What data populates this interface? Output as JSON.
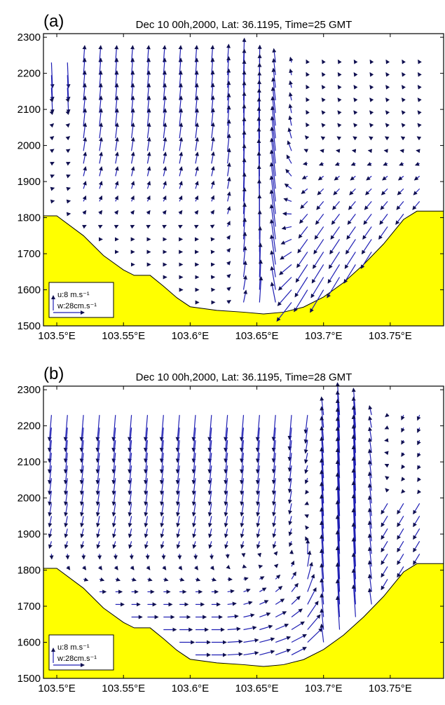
{
  "chart_data": [
    {
      "type": "quiver",
      "panel_label": "(a)",
      "title": "Dec 10 00h,2000, Lat: 36.1195, Time=25 GMT",
      "xlim": [
        103.49,
        103.79
      ],
      "ylim": [
        1500,
        2310
      ],
      "x_ticks": [
        103.5,
        103.55,
        103.6,
        103.65,
        103.7,
        103.75
      ],
      "x_tick_labels": [
        "103.5°E",
        "103.55°E",
        "103.6°E",
        "103.65°E",
        "103.7°E",
        "103.75°E"
      ],
      "y_ticks": [
        1500,
        1600,
        1700,
        1800,
        1900,
        2000,
        2100,
        2200,
        2300
      ],
      "y_tick_labels": [
        "1500",
        "1600",
        "1700",
        "1800",
        "1900",
        "2000",
        "2100",
        "2200",
        "2300"
      ],
      "terrain_color": "#ffff00",
      "arrow_color": "#1f1fb4",
      "terrain": [
        [
          103.49,
          1805
        ],
        [
          103.5,
          1805
        ],
        [
          103.52,
          1750
        ],
        [
          103.535,
          1695
        ],
        [
          103.55,
          1655
        ],
        [
          103.558,
          1640
        ],
        [
          103.57,
          1640
        ],
        [
          103.58,
          1610
        ],
        [
          103.59,
          1578
        ],
        [
          103.6,
          1553
        ],
        [
          103.62,
          1543
        ],
        [
          103.64,
          1538
        ],
        [
          103.655,
          1533
        ],
        [
          103.67,
          1538
        ],
        [
          103.685,
          1552
        ],
        [
          103.7,
          1580
        ],
        [
          103.715,
          1620
        ],
        [
          103.73,
          1670
        ],
        [
          103.745,
          1727
        ],
        [
          103.76,
          1795
        ],
        [
          103.77,
          1818
        ],
        [
          103.79,
          1818
        ]
      ],
      "legend": {
        "u_label": "u:8 m.s⁻¹",
        "w_label": "w:28cm.s⁻¹",
        "position": "bottom-left"
      }
    },
    {
      "type": "quiver",
      "panel_label": "(b)",
      "title": "Dec 10 00h,2000, Lat: 36.1195, Time=28 GMT",
      "xlim": [
        103.49,
        103.79
      ],
      "ylim": [
        1500,
        2310
      ],
      "x_ticks": [
        103.5,
        103.55,
        103.6,
        103.65,
        103.7,
        103.75
      ],
      "x_tick_labels": [
        "103.5°E",
        "103.55°E",
        "103.6°E",
        "103.65°E",
        "103.7°E",
        "103.75°E"
      ],
      "y_ticks": [
        1500,
        1600,
        1700,
        1800,
        1900,
        2000,
        2100,
        2200,
        2300
      ],
      "y_tick_labels": [
        "1500",
        "1600",
        "1700",
        "1800",
        "1900",
        "2000",
        "2100",
        "2200",
        "2300"
      ],
      "terrain_color": "#ffff00",
      "arrow_color": "#1f1fb4",
      "terrain": [
        [
          103.49,
          1805
        ],
        [
          103.5,
          1805
        ],
        [
          103.52,
          1750
        ],
        [
          103.535,
          1695
        ],
        [
          103.55,
          1655
        ],
        [
          103.558,
          1640
        ],
        [
          103.57,
          1640
        ],
        [
          103.58,
          1610
        ],
        [
          103.59,
          1578
        ],
        [
          103.6,
          1553
        ],
        [
          103.62,
          1543
        ],
        [
          103.64,
          1538
        ],
        [
          103.655,
          1533
        ],
        [
          103.67,
          1538
        ],
        [
          103.685,
          1552
        ],
        [
          103.7,
          1580
        ],
        [
          103.715,
          1620
        ],
        [
          103.73,
          1670
        ],
        [
          103.745,
          1727
        ],
        [
          103.76,
          1795
        ],
        [
          103.77,
          1818
        ],
        [
          103.79,
          1818
        ]
      ],
      "legend": {
        "u_label": "u:8 m.s⁻¹",
        "w_label": "w:28cm.s⁻¹",
        "position": "bottom-left"
      }
    }
  ]
}
